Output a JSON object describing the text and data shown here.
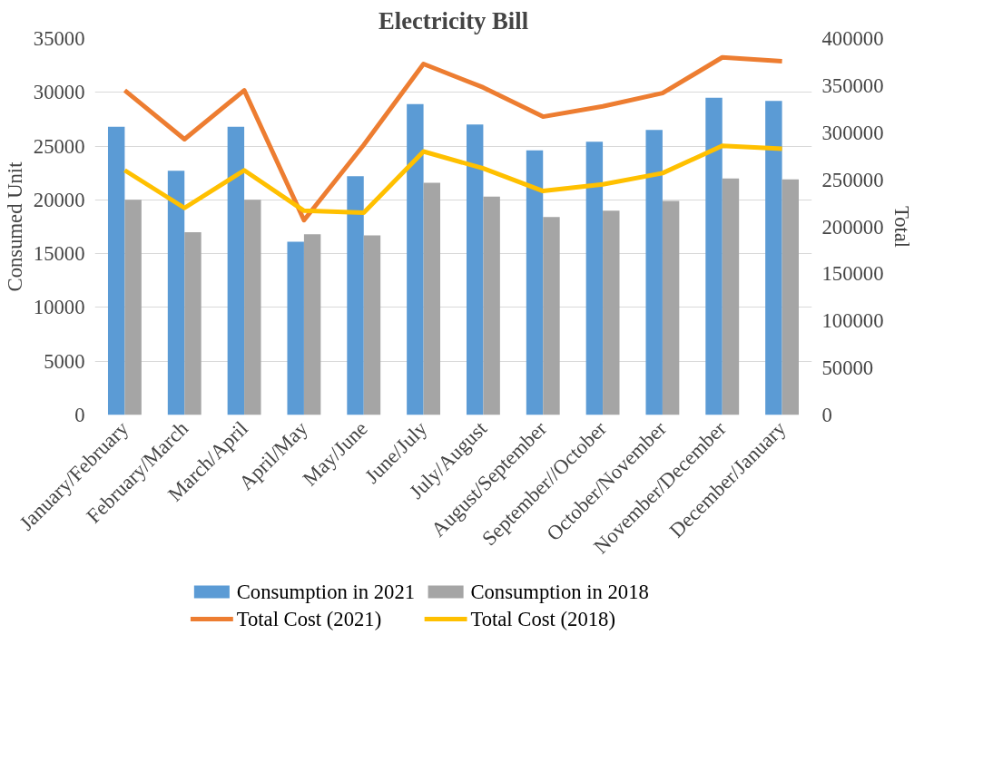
{
  "chart_data": {
    "type": "bar",
    "title": "Electricity Bill",
    "ylabel": "Consumed Unit",
    "y2label": "Total",
    "categories": [
      "January/February",
      "February/March",
      "March/April",
      "April/May",
      "May/June",
      "June/July",
      "July/August",
      "August/September",
      "September//October",
      "October/November",
      "November/December",
      "December/January"
    ],
    "series": [
      {
        "name": "Consumption in 2021",
        "color": "#5b9bd5",
        "values": [
          26800,
          22700,
          26800,
          16100,
          22200,
          28900,
          27000,
          24600,
          25400,
          26500,
          29500,
          29200
        ]
      },
      {
        "name": "Consumption in 2018",
        "color": "#a5a5a5",
        "values": [
          20000,
          17000,
          20000,
          16800,
          16700,
          21600,
          20300,
          18400,
          19000,
          19900,
          22000,
          21900
        ]
      },
      {
        "name": "Total Cost (2021)",
        "type": "line",
        "axis": "y2",
        "color": "#ed7d31",
        "values": [
          345000,
          293000,
          345000,
          207000,
          287000,
          373000,
          348000,
          317000,
          328000,
          342000,
          380000,
          376000
        ]
      },
      {
        "name": "Total Cost (2018)",
        "type": "line",
        "axis": "y2",
        "color": "#ffc000",
        "values": [
          260000,
          220000,
          260000,
          217000,
          215000,
          280000,
          262000,
          238000,
          245000,
          257000,
          286000,
          283000
        ]
      }
    ],
    "ylim": [
      0,
      35000
    ],
    "yticks": [
      0,
      5000,
      10000,
      15000,
      20000,
      25000,
      30000,
      35000
    ],
    "y2lim": [
      0,
      400000
    ],
    "y2ticks": [
      0,
      50000,
      100000,
      150000,
      200000,
      250000,
      300000,
      350000,
      400000
    ],
    "grid": "y",
    "legend": "bottom"
  }
}
